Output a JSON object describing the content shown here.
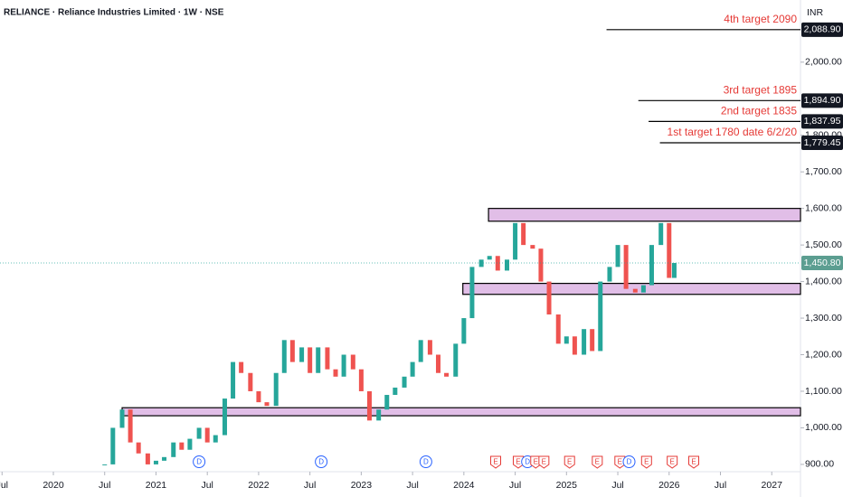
{
  "chart_data": {
    "type": "candlestick",
    "title": "RELIANCE · Reliance Industries Limited · 1W · NSE",
    "currency": "INR",
    "x": [
      2020.5,
      2020.58,
      2020.67,
      2020.75,
      2020.83,
      2020.92,
      2021.0,
      2021.08,
      2021.17,
      2021.25,
      2021.33,
      2021.42,
      2021.5,
      2021.58,
      2021.67,
      2021.75,
      2021.83,
      2021.92,
      2022.0,
      2022.08,
      2022.17,
      2022.25,
      2022.33,
      2022.42,
      2022.5,
      2022.58,
      2022.67,
      2022.75,
      2022.83,
      2022.92,
      2023.0,
      2023.08,
      2023.17,
      2023.25,
      2023.33,
      2023.42,
      2023.5,
      2023.58,
      2023.67,
      2023.75,
      2023.83,
      2023.92,
      2024.0,
      2024.08,
      2024.17,
      2024.25,
      2024.33,
      2024.42,
      2024.5,
      2024.58,
      2024.67,
      2024.75,
      2024.83,
      2024.92,
      2025.0,
      2025.08,
      2025.17,
      2025.25,
      2025.33,
      2025.42,
      2025.5,
      2025.58,
      2025.67,
      2025.75,
      2025.83,
      2025.92,
      2026.0,
      2026.05
    ],
    "values": [
      900,
      1000,
      1050,
      960,
      930,
      900,
      910,
      920,
      960,
      940,
      970,
      1000,
      960,
      980,
      1080,
      1180,
      1150,
      1100,
      1070,
      1060,
      1150,
      1240,
      1180,
      1220,
      1150,
      1220,
      1160,
      1140,
      1200,
      1160,
      1100,
      1020,
      1050,
      1090,
      1110,
      1140,
      1180,
      1240,
      1200,
      1150,
      1140,
      1230,
      1300,
      1440,
      1460,
      1470,
      1430,
      1460,
      1560,
      1500,
      1490,
      1400,
      1310,
      1230,
      1250,
      1200,
      1270,
      1210,
      1400,
      1440,
      1500,
      1380,
      1370,
      1390,
      1500,
      1560,
      1410,
      1450.8
    ],
    "up_color": "#26a69a",
    "down_color": "#ef5350",
    "xlim": [
      2019.48,
      2027.28
    ],
    "ylim": [
      880,
      2170
    ],
    "xticks": [
      {
        "value": 2019.5,
        "label": "Jul"
      },
      2020,
      {
        "value": 2020.5,
        "label": "Jul"
      },
      2021,
      {
        "value": 2021.5,
        "label": "Jul"
      },
      2022,
      {
        "value": 2022.5,
        "label": "Jul"
      },
      2023,
      {
        "value": 2023.5,
        "label": "Jul"
      },
      2024,
      {
        "value": 2024.5,
        "label": "Jul"
      },
      2025,
      {
        "value": 2025.5,
        "label": "Jul"
      },
      2026,
      {
        "value": 2026.5,
        "label": "Jul"
      },
      2027
    ],
    "yticks": [
      {
        "value": 900,
        "label": "900.00"
      },
      {
        "value": 1000,
        "label": "1,000.00"
      },
      {
        "value": 1100,
        "label": "1,100.00"
      },
      {
        "value": 1200,
        "label": "1,200.00"
      },
      {
        "value": 1300,
        "label": "1,300.00"
      },
      {
        "value": 1400,
        "label": "1,400.00"
      },
      {
        "value": 1500,
        "label": "1,500.00"
      },
      {
        "value": 1600,
        "label": "1,600.00"
      },
      {
        "value": 1700,
        "label": "1,700.00"
      },
      {
        "value": 1800,
        "label": "1,800.00"
      },
      {
        "value": 2000,
        "label": "2,000.00"
      }
    ],
    "zones": [
      {
        "from": 2024.24,
        "low": 1565,
        "high": 1600
      },
      {
        "from": 2023.99,
        "low": 1365,
        "high": 1395
      },
      {
        "from": 2020.67,
        "low": 1033,
        "high": 1055
      }
    ],
    "zone_color": "#e1bee7",
    "targets": [
      {
        "label": "4th target 2090",
        "from": 2025.39,
        "value": 2088.9,
        "value_label": "2,088.90"
      },
      {
        "label": "3rd target 1895",
        "from": 2025.7,
        "value": 1894.9,
        "value_label": "1,894.90"
      },
      {
        "label": "2nd target 1835",
        "from": 2025.8,
        "value": 1837.95,
        "value_label": "1,837.95"
      },
      {
        "label": "1st target 1780 date 6/2/20",
        "from": 2025.91,
        "value": 1779.45,
        "value_label": "1,779.45"
      }
    ],
    "target_color": "#e53935",
    "last_price": {
      "value": 1450.8,
      "label": "1,450.80"
    },
    "events": [
      {
        "x": 2021.42,
        "label": "D"
      },
      {
        "x": 2022.61,
        "label": "D"
      },
      {
        "x": 2023.63,
        "label": "D"
      },
      {
        "x": 2024.31,
        "label": "E"
      },
      {
        "x": 2024.53,
        "label": "E"
      },
      {
        "x": 2024.62,
        "label": "D"
      },
      {
        "x": 2024.7,
        "label": "E"
      },
      {
        "x": 2024.78,
        "label": "E"
      },
      {
        "x": 2025.03,
        "label": "E"
      },
      {
        "x": 2025.3,
        "label": "E"
      },
      {
        "x": 2025.52,
        "label": "E"
      },
      {
        "x": 2025.61,
        "label": "D"
      },
      {
        "x": 2025.78,
        "label": "E"
      },
      {
        "x": 2026.03,
        "label": "E"
      },
      {
        "x": 2026.24,
        "label": "E"
      }
    ]
  }
}
